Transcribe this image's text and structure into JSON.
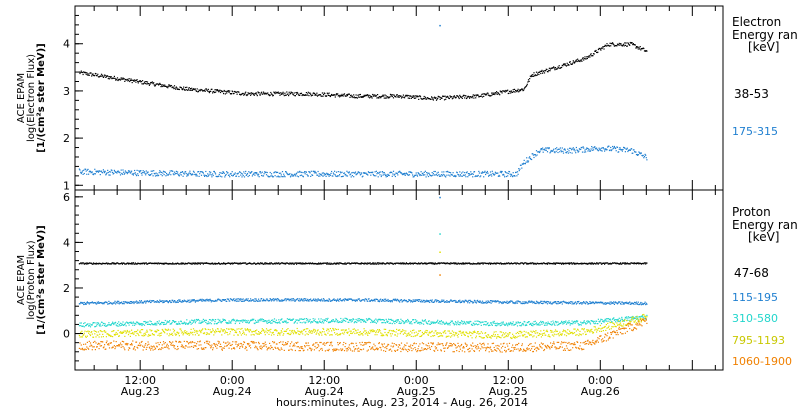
{
  "x_axis": {
    "ticks": [
      {
        "time": "12:00",
        "date": "Aug.23",
        "hours": 12
      },
      {
        "time": "0:00",
        "date": "Aug.24",
        "hours": 24
      },
      {
        "time": "12:00",
        "date": "Aug.24",
        "hours": 36
      },
      {
        "time": "0:00",
        "date": "Aug.25",
        "hours": 48
      },
      {
        "time": "12:00",
        "date": "Aug.25",
        "hours": 60
      },
      {
        "time": "0:00",
        "date": "Aug.26",
        "hours": 72
      }
    ],
    "caption": "hours:minutes, Aug. 23, 2014 - Aug. 26, 2014",
    "range_hours_from_aug23_0000": [
      3.5,
      88
    ],
    "minor_tick_every_hours": 3
  },
  "chart_data": [
    {
      "type": "scatter",
      "ylabel_lines": [
        "ACE EPAM",
        "log(Electron Flux)",
        "[1/(cm²s ster MeV)]"
      ],
      "ylim": [
        0.9,
        4.8
      ],
      "y_ticks": [
        1,
        2,
        3,
        4
      ],
      "legend_title_lines": [
        "Electron",
        "Energy ran",
        "[keV]"
      ],
      "series": [
        {
          "name": "38-53",
          "color": "#000000",
          "trend_x_hours": [
            4,
            10,
            18,
            26,
            34,
            40,
            46,
            50,
            56,
            60,
            62,
            63,
            67,
            70,
            73,
            76,
            78
          ],
          "trend_y": [
            3.4,
            3.25,
            3.05,
            2.95,
            2.95,
            2.9,
            2.9,
            2.85,
            2.9,
            3.0,
            3.05,
            3.35,
            3.55,
            3.7,
            4.0,
            4.0,
            3.85
          ],
          "scatter": 0.04
        },
        {
          "name": "175-315",
          "color": "#1f7fd0",
          "trend_x_hours": [
            4,
            20,
            40,
            55,
            61,
            62,
            64,
            68,
            72,
            76,
            78
          ],
          "trend_y": [
            1.3,
            1.25,
            1.25,
            1.25,
            1.25,
            1.5,
            1.75,
            1.75,
            1.8,
            1.75,
            1.6
          ],
          "scatter": 0.06
        }
      ],
      "spikes": [
        {
          "x_hours": 51,
          "y": 4.4,
          "color": "#1f7fd0"
        }
      ]
    },
    {
      "type": "scatter",
      "ylabel_lines": [
        "ACE EPAM",
        "log(Proton Flux)",
        "[1/(cm²s ster MeV)]"
      ],
      "ylim": [
        -1.6,
        6.3
      ],
      "y_ticks": [
        0,
        2,
        4,
        6
      ],
      "legend_title_lines": [
        "Proton",
        "Energy ran",
        "[keV]"
      ],
      "series": [
        {
          "name": "47-68",
          "color": "#000000",
          "trend_x_hours": [
            4,
            40,
            78
          ],
          "trend_y": [
            3.1,
            3.1,
            3.1
          ],
          "scatter": 0.03
        },
        {
          "name": "115-195",
          "color": "#1f7fd0",
          "trend_x_hours": [
            4,
            24,
            40,
            60,
            78
          ],
          "trend_y": [
            1.35,
            1.5,
            1.5,
            1.4,
            1.35
          ],
          "scatter": 0.06
        },
        {
          "name": "310-580",
          "color": "#22d6cc",
          "trend_x_hours": [
            4,
            20,
            40,
            60,
            70,
            78
          ],
          "trend_y": [
            0.4,
            0.55,
            0.6,
            0.45,
            0.5,
            0.75
          ],
          "scatter": 0.1
        },
        {
          "name": "795-1193",
          "color": "#e0e000",
          "trend_x_hours": [
            4,
            20,
            40,
            60,
            70,
            78
          ],
          "trend_y": [
            0.0,
            0.1,
            0.1,
            -0.05,
            0.1,
            0.75
          ],
          "scatter": 0.15
        },
        {
          "name": "1060-1900",
          "color": "#f08000",
          "trend_x_hours": [
            4,
            20,
            40,
            60,
            70,
            78
          ],
          "trend_y": [
            -0.5,
            -0.5,
            -0.55,
            -0.6,
            -0.5,
            0.6
          ],
          "scatter": 0.2
        }
      ],
      "spikes": [
        {
          "x_hours": 51,
          "y": 6.0,
          "color": "#1f7fd0"
        },
        {
          "x_hours": 51,
          "y": 4.4,
          "color": "#22d6cc"
        },
        {
          "x_hours": 51,
          "y": 3.6,
          "color": "#e0e000"
        },
        {
          "x_hours": 51,
          "y": 2.6,
          "color": "#f08000"
        }
      ]
    }
  ]
}
